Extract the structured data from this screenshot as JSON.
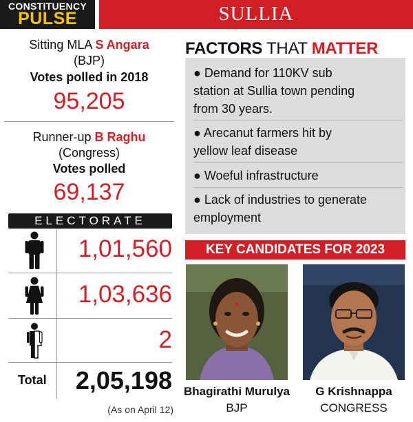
{
  "brand": {
    "line1": "CONSTITUENCY",
    "line2": "PULSE"
  },
  "title": "SULLIA",
  "sitting": {
    "prefix": "Sitting MLA ",
    "name": "S Angara",
    "party": "(BJP)",
    "votes_label": "Votes polled in 2018",
    "votes": "95,205"
  },
  "runnerup": {
    "prefix": "Runner-up ",
    "name": "B Raghu",
    "party": "(Congress)",
    "votes_label": "Votes polled",
    "votes": "69,137"
  },
  "electorate": {
    "heading": "ELECTORATE",
    "rows": [
      {
        "icon": "male-icon",
        "value": "1,01,560"
      },
      {
        "icon": "female-icon",
        "value": "1,03,636"
      },
      {
        "icon": "third-gender-icon",
        "value": "2"
      }
    ],
    "total_label": "Total",
    "total_value": "2,05,198",
    "as_on": "(As on April 12)"
  },
  "factors": {
    "heading_part1": "FACTORS",
    "heading_part2": " THAT ",
    "heading_part3": "MATTER",
    "bullet": "●",
    "items": [
      {
        "line1": "Demand for 110KV sub",
        "line2": "station at Sullia town pending",
        "line3": "from 30 years."
      },
      {
        "line1": "Arecanut farmers hit by",
        "line2": "yellow leaf disease"
      },
      {
        "line1": "Woeful infrastructure"
      },
      {
        "line1": "Lack of industries to generate",
        "line2": "employment"
      }
    ]
  },
  "candidates": {
    "heading": "KEY CANDIDATES FOR 2023",
    "list": [
      {
        "name": "Bhagirathi Murulya",
        "party": "BJP"
      },
      {
        "name": "G Krishnappa",
        "party": "CONGRESS"
      }
    ]
  },
  "colors": {
    "accent": "#d21f26",
    "dark": "#1a1a1a",
    "brand_yellow": "#f2c200",
    "box_grey": "#dcdcdc"
  }
}
